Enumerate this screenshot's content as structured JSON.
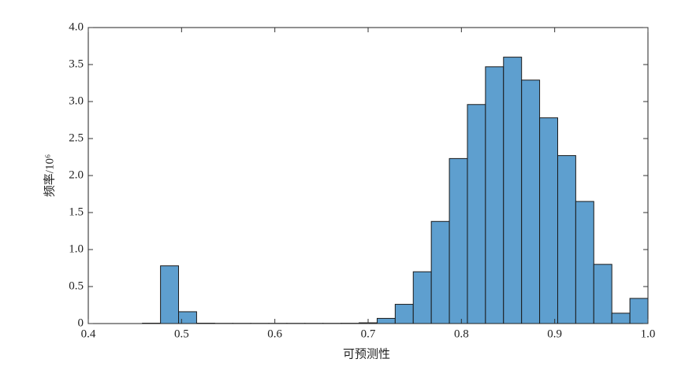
{
  "chart_data": {
    "type": "histogram",
    "xlabel": "可预测性",
    "ylabel": "频率/10⁶",
    "color": "#5e9fcf",
    "bins": [
      0.4,
      0.41935,
      0.43871,
      0.45806,
      0.47742,
      0.49677,
      0.51613,
      0.53548,
      0.55484,
      0.57419,
      0.59355,
      0.6129,
      0.63226,
      0.65161,
      0.67097,
      0.69032,
      0.70968,
      0.72903,
      0.74839,
      0.76774,
      0.7871,
      0.80645,
      0.82581,
      0.84516,
      0.86452,
      0.88387,
      0.90323,
      0.92258,
      0.94194,
      0.96129,
      0.98065,
      1.0
    ],
    "values": [
      0,
      0,
      0,
      0.005,
      0.78,
      0.16,
      0.005,
      0.003,
      0.003,
      0.003,
      0.003,
      0.003,
      0.003,
      0.003,
      0.004,
      0.01,
      0.07,
      0.26,
      0.7,
      1.38,
      2.23,
      2.96,
      3.47,
      3.6,
      3.29,
      2.78,
      2.27,
      1.65,
      0.8,
      0.14,
      0.34
    ],
    "xlim": [
      0.4,
      1.0
    ],
    "xticks": [
      0.4,
      0.5,
      0.6,
      0.7,
      0.8,
      0.9,
      {
        "value": 1.0,
        "label": "1.0"
      }
    ],
    "ylim": [
      0,
      4.0
    ],
    "yticks": [
      0,
      0.5,
      {
        "value": 1.0,
        "label": "1.0"
      },
      1.5,
      {
        "value": 2.0,
        "label": "2.0"
      },
      2.5,
      {
        "value": 3.0,
        "label": "3.0"
      },
      3.5,
      {
        "value": 4.0,
        "label": "4.0"
      }
    ]
  }
}
